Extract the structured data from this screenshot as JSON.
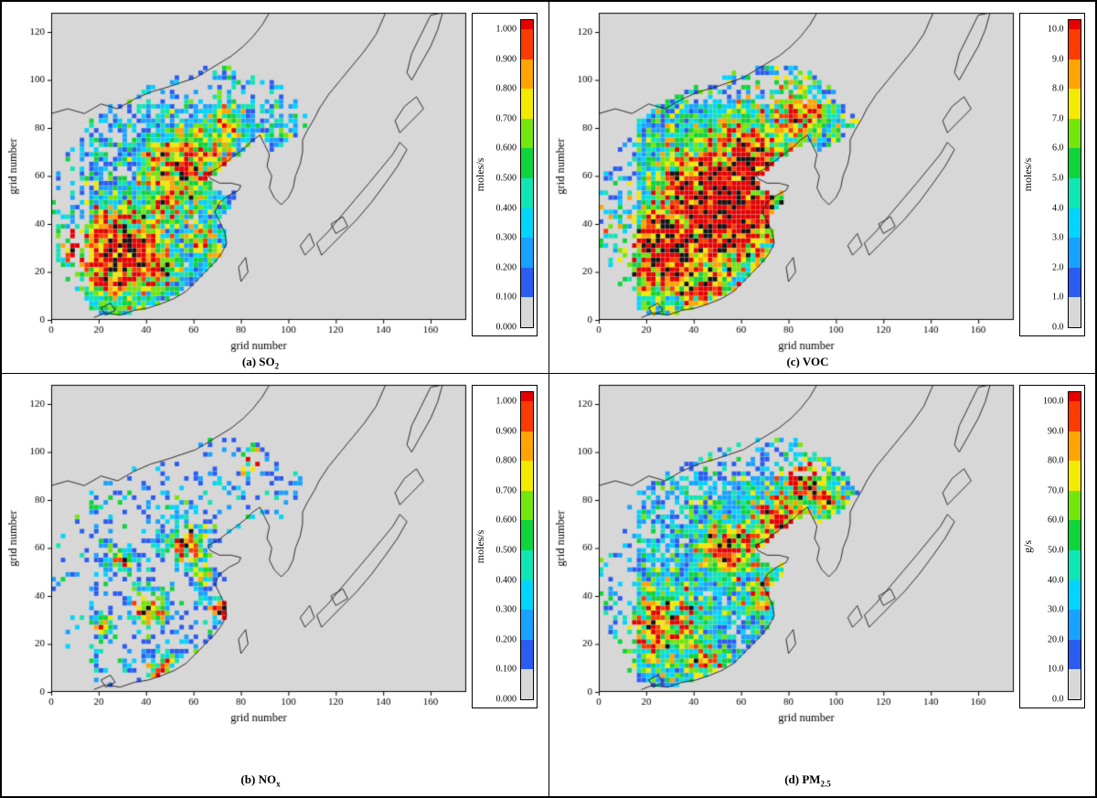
{
  "chart_data": [
    {
      "type": "heatmap",
      "panel": "a",
      "caption_prefix": "(a) ",
      "caption_main": "SO",
      "caption_sub": "2",
      "xlabel": "grid number",
      "ylabel": "grid number",
      "xlim": [
        0,
        175
      ],
      "ylim": [
        0,
        128
      ],
      "x_ticks": [
        0,
        20,
        40,
        60,
        80,
        100,
        120,
        140,
        160
      ],
      "y_ticks": [
        0,
        20,
        40,
        60,
        80,
        100,
        120
      ],
      "colorbar": {
        "unit": "moles/s",
        "tick_labels_top_to_bottom": [
          "1.000",
          "0.900",
          "0.800",
          "0.700",
          "0.600",
          "0.500",
          "0.400",
          "0.300",
          "0.200",
          "0.100",
          "0.000"
        ],
        "segment_colors_bottom_to_top": [
          "#d8d8d8",
          "#2a5cf0",
          "#18a2ff",
          "#00d4ff",
          "#0fe6b4",
          "#0fd43c",
          "#74e60c",
          "#f2ea00",
          "#ffa400",
          "#fa3c00"
        ],
        "overflow_color": "#e60000"
      },
      "value_range": [
        0,
        1
      ],
      "pattern": {
        "seed": 101,
        "density": 0.85,
        "base_pow": 1.6,
        "base_scale": 0.55,
        "hotspots": [
          {
            "x": 28,
            "y": 27,
            "r": 15,
            "g": 1.15
          },
          {
            "x": 12,
            "y": 31,
            "r": 7,
            "g": 0.95
          },
          {
            "x": 44,
            "y": 22,
            "r": 8,
            "g": 0.85
          },
          {
            "x": 55,
            "y": 62,
            "r": 11,
            "g": 0.95
          },
          {
            "x": 48,
            "y": 48,
            "r": 8,
            "g": 0.7
          },
          {
            "x": 66,
            "y": 72,
            "r": 8,
            "g": 0.8
          },
          {
            "x": 74,
            "y": 82,
            "r": 6,
            "g": 0.7
          },
          {
            "x": 63,
            "y": 34,
            "r": 6,
            "g": 0.65
          }
        ]
      }
    },
    {
      "type": "heatmap",
      "panel": "c",
      "caption_prefix": "(c) ",
      "caption_main": "VOC",
      "caption_sub": "",
      "xlabel": "grid number",
      "ylabel": "grid number",
      "xlim": [
        0,
        175
      ],
      "ylim": [
        0,
        128
      ],
      "x_ticks": [
        0,
        20,
        40,
        60,
        80,
        100,
        120,
        140,
        160
      ],
      "y_ticks": [
        0,
        20,
        40,
        60,
        80,
        100,
        120
      ],
      "colorbar": {
        "unit": "moles/s",
        "tick_labels_top_to_bottom": [
          "10.0",
          "9.0",
          "8.0",
          "7.0",
          "6.0",
          "5.0",
          "4.0",
          "3.0",
          "2.0",
          "1.0",
          "0.0"
        ],
        "segment_colors_bottom_to_top": [
          "#d8d8d8",
          "#2a5cf0",
          "#18a2ff",
          "#00d4ff",
          "#0fe6b4",
          "#0fd43c",
          "#74e60c",
          "#f2ea00",
          "#ffa400",
          "#fa3c00"
        ],
        "overflow_color": "#e60000"
      },
      "value_range": [
        0,
        10
      ],
      "pattern": {
        "seed": 202,
        "density": 0.93,
        "base_pow": 1.4,
        "base_scale": 0.6,
        "hotspots": [
          {
            "x": 52,
            "y": 48,
            "r": 20,
            "g": 1.35
          },
          {
            "x": 30,
            "y": 30,
            "r": 15,
            "g": 1.2
          },
          {
            "x": 62,
            "y": 66,
            "r": 13,
            "g": 1.1
          },
          {
            "x": 45,
            "y": 12,
            "r": 9,
            "g": 0.95
          },
          {
            "x": 84,
            "y": 86,
            "r": 9,
            "g": 0.8
          },
          {
            "x": 40,
            "y": 60,
            "r": 10,
            "g": 0.8
          }
        ]
      }
    },
    {
      "type": "heatmap",
      "panel": "b",
      "caption_prefix": "(b) ",
      "caption_main": "NO",
      "caption_sub": "x",
      "xlabel": "grid number",
      "ylabel": "grid number",
      "xlim": [
        0,
        175
      ],
      "ylim": [
        0,
        128
      ],
      "x_ticks": [
        0,
        20,
        40,
        60,
        80,
        100,
        120,
        140,
        160
      ],
      "y_ticks": [
        0,
        20,
        40,
        60,
        80,
        100,
        120
      ],
      "colorbar": {
        "unit": "moles/s",
        "tick_labels_top_to_bottom": [
          "1.000",
          "0.900",
          "0.800",
          "0.700",
          "0.600",
          "0.500",
          "0.400",
          "0.300",
          "0.200",
          "0.100",
          "0.000"
        ],
        "segment_colors_bottom_to_top": [
          "#d8d8d8",
          "#2a5cf0",
          "#18a2ff",
          "#00d4ff",
          "#0fe6b4",
          "#0fd43c",
          "#74e60c",
          "#f2ea00",
          "#ffa400",
          "#fa3c00"
        ],
        "overflow_color": "#e60000"
      },
      "value_range": [
        0,
        1
      ],
      "pattern": {
        "seed": 303,
        "density": 0.5,
        "base_pow": 2.4,
        "base_scale": 0.5,
        "hotspots": [
          {
            "x": 57,
            "y": 62,
            "r": 6,
            "g": 1.0
          },
          {
            "x": 41,
            "y": 35,
            "r": 5,
            "g": 0.95
          },
          {
            "x": 73,
            "y": 34,
            "r": 4,
            "g": 1.1
          },
          {
            "x": 47,
            "y": 8,
            "r": 5,
            "g": 0.9
          },
          {
            "x": 30,
            "y": 55,
            "r": 4,
            "g": 0.7
          },
          {
            "x": 85,
            "y": 96,
            "r": 4,
            "g": 0.85
          },
          {
            "x": 63,
            "y": 50,
            "r": 4,
            "g": 0.7
          },
          {
            "x": 22,
            "y": 28,
            "r": 4,
            "g": 0.6
          }
        ]
      }
    },
    {
      "type": "heatmap",
      "panel": "d",
      "caption_prefix": "(d) ",
      "caption_main": "PM",
      "caption_sub": "2.5",
      "xlabel": "grid number",
      "ylabel": "grid number",
      "xlim": [
        0,
        175
      ],
      "ylim": [
        0,
        128
      ],
      "x_ticks": [
        0,
        20,
        40,
        60,
        80,
        100,
        120,
        140,
        160
      ],
      "y_ticks": [
        0,
        20,
        40,
        60,
        80,
        100,
        120
      ],
      "colorbar": {
        "unit": "g/s",
        "tick_labels_top_to_bottom": [
          "100.0",
          "90.0",
          "80.0",
          "70.0",
          "60.0",
          "50.0",
          "40.0",
          "30.0",
          "20.0",
          "10.0",
          "0.0"
        ],
        "segment_colors_bottom_to_top": [
          "#d8d8d8",
          "#2a5cf0",
          "#18a2ff",
          "#00d4ff",
          "#0fe6b4",
          "#0fd43c",
          "#74e60c",
          "#f2ea00",
          "#ffa400",
          "#fa3c00"
        ],
        "overflow_color": "#e60000"
      },
      "value_range": [
        0,
        100
      ],
      "pattern": {
        "seed": 404,
        "density": 0.88,
        "base_pow": 1.5,
        "base_scale": 0.55,
        "hotspots": [
          {
            "x": 78,
            "y": 66,
            "r": 12,
            "g": 1.05
          },
          {
            "x": 86,
            "y": 88,
            "r": 8,
            "g": 0.9
          },
          {
            "x": 56,
            "y": 60,
            "r": 10,
            "g": 0.9
          },
          {
            "x": 28,
            "y": 28,
            "r": 13,
            "g": 0.75
          },
          {
            "x": 70,
            "y": 40,
            "r": 7,
            "g": 0.7
          },
          {
            "x": 45,
            "y": 10,
            "r": 7,
            "g": 0.7
          },
          {
            "x": 95,
            "y": 80,
            "r": 6,
            "g": 0.8
          }
        ]
      }
    }
  ],
  "map_geometry": {
    "background": "#d7d7d7",
    "outline_color": "#1a1a1a",
    "emission_mask_polygon": [
      [
        0,
        30
      ],
      [
        0,
        56
      ],
      [
        4,
        64
      ],
      [
        8,
        72
      ],
      [
        13,
        79
      ],
      [
        18,
        84
      ],
      [
        25,
        89
      ],
      [
        32,
        93
      ],
      [
        40,
        97
      ],
      [
        48,
        100
      ],
      [
        56,
        103
      ],
      [
        64,
        105
      ],
      [
        72,
        106
      ],
      [
        80,
        106
      ],
      [
        88,
        104
      ],
      [
        96,
        99
      ],
      [
        102,
        93
      ],
      [
        107,
        87
      ],
      [
        110,
        83
      ],
      [
        105,
        78
      ],
      [
        99,
        73
      ],
      [
        93,
        70
      ],
      [
        88,
        74
      ],
      [
        83,
        72
      ],
      [
        78,
        68
      ],
      [
        72,
        63
      ],
      [
        67,
        59
      ],
      [
        69,
        55
      ],
      [
        74,
        52
      ],
      [
        79,
        54
      ],
      [
        77,
        48
      ],
      [
        72,
        44
      ],
      [
        73,
        38
      ],
      [
        75,
        32
      ],
      [
        71,
        26
      ],
      [
        66,
        21
      ],
      [
        60,
        15
      ],
      [
        53,
        10
      ],
      [
        46,
        7
      ],
      [
        38,
        4
      ],
      [
        30,
        2
      ],
      [
        22,
        2
      ],
      [
        15,
        6
      ],
      [
        10,
        12
      ],
      [
        6,
        18
      ],
      [
        3,
        24
      ]
    ],
    "coastlines": [
      [
        [
          18,
          1
        ],
        [
          23,
          3
        ],
        [
          29,
          2
        ],
        [
          35,
          4
        ],
        [
          41,
          5
        ],
        [
          47,
          7
        ],
        [
          52,
          9
        ],
        [
          57,
          12
        ],
        [
          61,
          16
        ],
        [
          65,
          20
        ],
        [
          69,
          24
        ],
        [
          72,
          28
        ],
        [
          74,
          32
        ],
        [
          73,
          37
        ],
        [
          71,
          41
        ],
        [
          69,
          45
        ],
        [
          71,
          49
        ],
        [
          75,
          52
        ],
        [
          79,
          54
        ],
        [
          80,
          56
        ],
        [
          76,
          57
        ],
        [
          71,
          57
        ],
        [
          67,
          59
        ],
        [
          66,
          61
        ],
        [
          70,
          63
        ],
        [
          74,
          66
        ],
        [
          78,
          69
        ],
        [
          82,
          72
        ],
        [
          85,
          75
        ],
        [
          88,
          77
        ]
      ],
      [
        [
          88,
          77
        ],
        [
          90,
          73
        ],
        [
          92,
          69
        ],
        [
          91,
          64
        ],
        [
          93,
          60
        ],
        [
          92,
          55
        ],
        [
          94,
          51
        ],
        [
          97,
          48
        ],
        [
          100,
          51
        ],
        [
          102,
          55
        ],
        [
          103,
          60
        ],
        [
          105,
          65
        ],
        [
          106,
          70
        ],
        [
          106,
          75
        ],
        [
          108,
          79
        ],
        [
          111,
          84
        ],
        [
          113,
          88
        ]
      ],
      [
        [
          113,
          88
        ],
        [
          117,
          94
        ],
        [
          122,
          100
        ],
        [
          127,
          106
        ],
        [
          132,
          112
        ],
        [
          137,
          119
        ],
        [
          141,
          128
        ]
      ],
      [
        [
          112,
          32
        ],
        [
          117,
          37
        ],
        [
          122,
          43
        ],
        [
          128,
          50
        ],
        [
          134,
          57
        ],
        [
          139,
          63
        ],
        [
          144,
          69
        ],
        [
          147,
          74
        ],
        [
          150,
          71
        ],
        [
          146,
          64
        ],
        [
          141,
          57
        ],
        [
          135,
          49
        ],
        [
          129,
          42
        ],
        [
          123,
          36
        ],
        [
          118,
          31
        ],
        [
          114,
          27
        ],
        [
          112,
          32
        ]
      ],
      [
        [
          147,
          78
        ],
        [
          152,
          83
        ],
        [
          157,
          88
        ],
        [
          154,
          93
        ],
        [
          149,
          89
        ],
        [
          145,
          83
        ],
        [
          147,
          78
        ]
      ],
      [
        [
          107,
          27
        ],
        [
          111,
          31
        ],
        [
          109,
          36
        ],
        [
          105,
          31
        ],
        [
          107,
          27
        ]
      ],
      [
        [
          120,
          36
        ],
        [
          125,
          39
        ],
        [
          123,
          43
        ],
        [
          118,
          40
        ],
        [
          120,
          36
        ]
      ],
      [
        [
          80,
          16
        ],
        [
          83,
          20
        ],
        [
          82,
          26
        ],
        [
          79,
          22
        ],
        [
          80,
          16
        ]
      ],
      [
        [
          23,
          2
        ],
        [
          27,
          4
        ],
        [
          25,
          7
        ],
        [
          21,
          5
        ],
        [
          23,
          2
        ]
      ],
      [
        [
          0,
          86
        ],
        [
          7,
          88
        ],
        [
          14,
          86
        ],
        [
          21,
          90
        ],
        [
          28,
          88
        ],
        [
          35,
          92
        ],
        [
          42,
          95
        ],
        [
          49,
          97
        ],
        [
          55,
          99
        ],
        [
          61,
          101
        ],
        [
          66,
          104
        ],
        [
          71,
          107
        ],
        [
          76,
          110
        ],
        [
          81,
          114
        ],
        [
          85,
          118
        ],
        [
          89,
          123
        ],
        [
          92,
          128
        ]
      ],
      [
        [
          152,
          100
        ],
        [
          156,
          107
        ],
        [
          160,
          114
        ],
        [
          163,
          121
        ],
        [
          165,
          128
        ],
        [
          160,
          127
        ],
        [
          156,
          119
        ],
        [
          152,
          111
        ],
        [
          150,
          103
        ],
        [
          152,
          100
        ]
      ]
    ]
  }
}
